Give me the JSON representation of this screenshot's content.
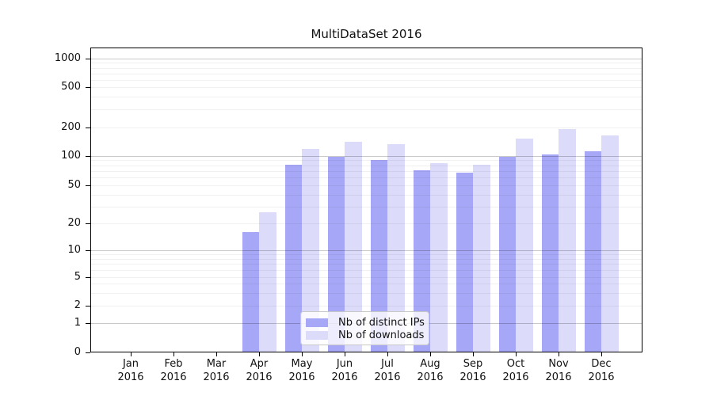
{
  "chart_data": {
    "type": "bar",
    "title": "MultiDataSet 2016",
    "categories": [
      "Jan 2016",
      "Feb 2016",
      "Mar 2016",
      "Apr 2016",
      "May 2016",
      "Jun 2016",
      "Jul 2016",
      "Aug 2016",
      "Sep 2016",
      "Oct 2016",
      "Nov 2016",
      "Dec 2016"
    ],
    "series": [
      {
        "name": "Nb of distinct IPs",
        "color": "#a7a7f7",
        "values": [
          0,
          0,
          0,
          16,
          81,
          98,
          90,
          71,
          67,
          97,
          102,
          112
        ]
      },
      {
        "name": "Nb of downloads",
        "color": "#dcdcfa",
        "values": [
          0,
          0,
          0,
          26,
          118,
          141,
          132,
          84,
          81,
          152,
          192,
          164
        ]
      }
    ],
    "xlabel": "",
    "ylabel": "",
    "y_scale": "log",
    "y_ticks": [
      0,
      1,
      2,
      5,
      10,
      20,
      50,
      100,
      200,
      500,
      1000
    ],
    "y_major_gridlines": [
      1,
      10,
      100,
      1000
    ],
    "y_minor_ticks": [
      3,
      4,
      6,
      7,
      8,
      9,
      30,
      40,
      60,
      70,
      80,
      90,
      300,
      400,
      600,
      700,
      800,
      900
    ],
    "ylim": [
      0,
      1300
    ],
    "grid": true,
    "legend_position": "lower center"
  }
}
